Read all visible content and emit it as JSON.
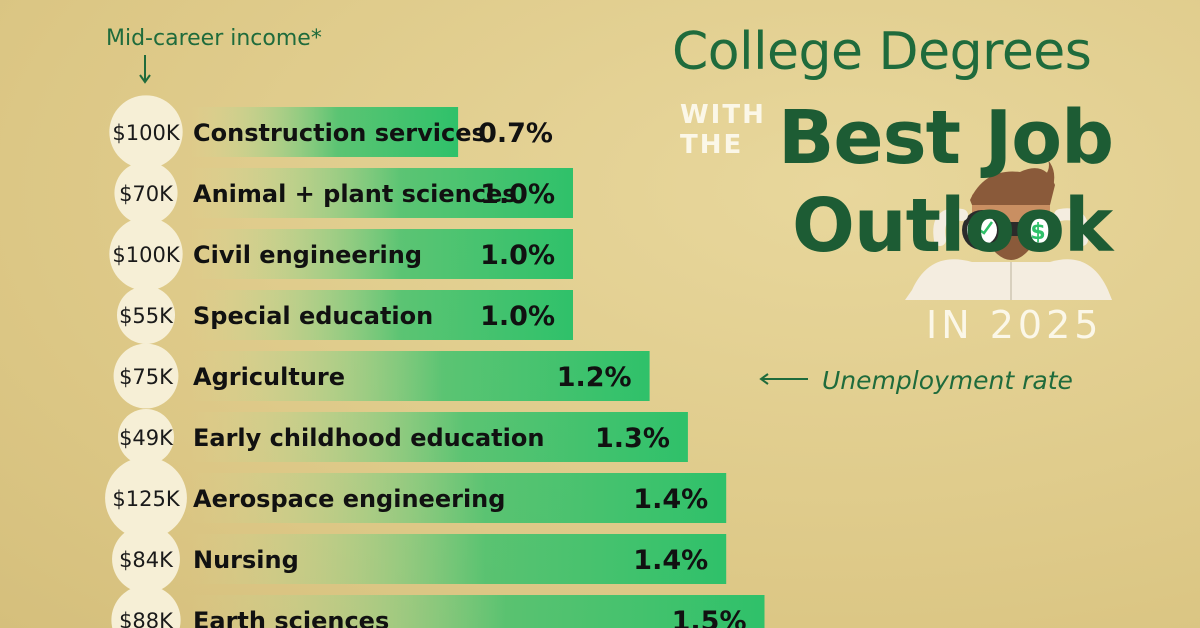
{
  "title": {
    "line1": "College Degrees",
    "with": "WITH",
    "the": "THE",
    "line2a": "Best Job",
    "line2b": "Outlook",
    "year": "IN 2025"
  },
  "annotations": {
    "income_header": "Mid-career income*",
    "rate_pointer": "Unemployment rate"
  },
  "colors": {
    "bar_start": "#cfe7a3",
    "bar_end": "#2fc16a",
    "title_green": "#1d5c34",
    "circle": "#f6efd6"
  },
  "chart_data": {
    "type": "bar",
    "orientation": "horizontal",
    "categories": [
      "Construction services",
      "Animal + plant sciences",
      "Civil engineering",
      "Special education",
      "Agriculture",
      "Early childhood education",
      "Aerospace engineering",
      "Nursing",
      "Earth sciences"
    ],
    "values": [
      0.7,
      1.0,
      1.0,
      1.0,
      1.2,
      1.3,
      1.4,
      1.4,
      1.5
    ],
    "value_labels": [
      "0.7%",
      "1.0%",
      "1.0%",
      "1.0%",
      "1.2%",
      "1.3%",
      "1.4%",
      "1.4%",
      "1.5%"
    ],
    "income": [
      "$100K",
      "$70K",
      "$100K",
      "$55K",
      "$75K",
      "$49K",
      "$125K",
      "$84K",
      "$88K"
    ],
    "income_values": [
      100,
      70,
      100,
      55,
      75,
      49,
      125,
      84,
      88
    ],
    "unit": "%"
  }
}
